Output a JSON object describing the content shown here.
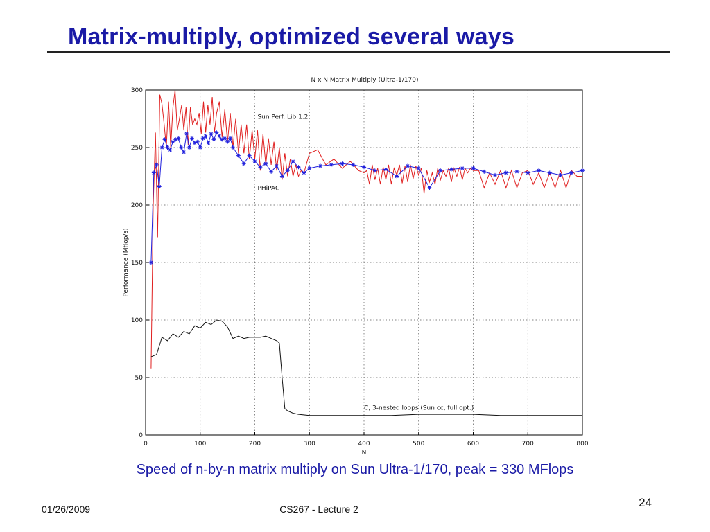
{
  "slide": {
    "title": "Matrix-multiply, optimized several ways",
    "caption": "Speed of n-by-n matrix multiply on Sun Ultra-1/170, peak = 330 MFlops",
    "footer_date": "01/26/2009",
    "footer_center": "CS267 - Lecture 2",
    "page_number": "24"
  },
  "chart_data": {
    "type": "line",
    "title": "N x N Matrix Multiply (Ultra-1/170)",
    "xlabel": "N",
    "ylabel": "Performance (Mflop/s)",
    "xlim": [
      0,
      800
    ],
    "ylim": [
      0,
      300
    ],
    "xticks": [
      0,
      100,
      200,
      300,
      400,
      500,
      600,
      700,
      800
    ],
    "yticks": [
      0,
      50,
      100,
      150,
      200,
      250,
      300
    ],
    "grid": true,
    "annotations": [
      {
        "text": "Sun Perf. Lib 1.2",
        "x": 205,
        "y": 275
      },
      {
        "text": "PHiPAC",
        "x": 205,
        "y": 213
      },
      {
        "text": "C, 3-nested loops (Sun cc, full opt.)",
        "x": 400,
        "y": 22
      }
    ],
    "series": [
      {
        "name": "",
        "color": "#e02020",
        "marker": "none",
        "x": [
          10,
          14,
          18,
          22,
          26,
          30,
          34,
          38,
          42,
          46,
          50,
          54,
          58,
          62,
          66,
          70,
          74,
          78,
          82,
          86,
          90,
          94,
          98,
          102,
          106,
          110,
          114,
          118,
          122,
          126,
          130,
          135,
          140,
          145,
          150,
          155,
          160,
          165,
          170,
          175,
          180,
          185,
          190,
          195,
          200,
          205,
          210,
          215,
          220,
          225,
          230,
          235,
          240,
          245,
          250,
          255,
          260,
          265,
          270,
          275,
          280,
          285,
          290,
          300,
          315,
          330,
          345,
          360,
          375,
          390,
          400,
          405,
          410,
          415,
          420,
          425,
          430,
          435,
          440,
          445,
          450,
          455,
          460,
          465,
          470,
          475,
          480,
          485,
          490,
          495,
          500,
          505,
          510,
          515,
          520,
          525,
          530,
          535,
          540,
          545,
          550,
          555,
          560,
          565,
          570,
          575,
          580,
          585,
          590,
          595,
          600,
          610,
          620,
          630,
          640,
          650,
          660,
          670,
          680,
          690,
          700,
          710,
          720,
          730,
          740,
          750,
          760,
          770,
          780,
          790,
          800
        ],
        "y": [
          58,
          200,
          263,
          172,
          296,
          288,
          270,
          250,
          290,
          250,
          285,
          300,
          265,
          275,
          287,
          265,
          285,
          252,
          285,
          270,
          275,
          270,
          280,
          262,
          290,
          263,
          287,
          270,
          294,
          263,
          280,
          290,
          259,
          283,
          255,
          280,
          250,
          275,
          245,
          270,
          245,
          270,
          240,
          265,
          240,
          265,
          230,
          262,
          235,
          258,
          235,
          255,
          230,
          250,
          222,
          245,
          225,
          240,
          225,
          235,
          225,
          230,
          228,
          245,
          248,
          235,
          240,
          232,
          238,
          230,
          228,
          230,
          218,
          235,
          222,
          232,
          218,
          233,
          222,
          235,
          218,
          232,
          226,
          235,
          219,
          234,
          220,
          235,
          223,
          234,
          226,
          232,
          210,
          230,
          220,
          228,
          218,
          232,
          222,
          230,
          225,
          232,
          220,
          232,
          225,
          233,
          222,
          232,
          228,
          232,
          230,
          230,
          215,
          228,
          218,
          230,
          215,
          230,
          215,
          228,
          230,
          218,
          228,
          215,
          228,
          215,
          230,
          215,
          230,
          225,
          225
        ]
      },
      {
        "name": "",
        "color": "#2020dd",
        "marker": "star",
        "x": [
          10,
          15,
          20,
          25,
          30,
          35,
          40,
          45,
          50,
          55,
          60,
          65,
          70,
          75,
          80,
          85,
          90,
          95,
          100,
          105,
          110,
          115,
          120,
          125,
          130,
          135,
          140,
          145,
          150,
          155,
          160,
          170,
          180,
          190,
          200,
          210,
          220,
          230,
          240,
          250,
          260,
          270,
          280,
          290,
          300,
          320,
          340,
          360,
          380,
          400,
          420,
          440,
          460,
          480,
          500,
          520,
          540,
          560,
          580,
          600,
          620,
          640,
          660,
          680,
          700,
          720,
          740,
          760,
          780,
          800
        ],
        "y": [
          150,
          228,
          235,
          216,
          250,
          257,
          250,
          248,
          255,
          257,
          258,
          250,
          246,
          262,
          250,
          258,
          254,
          255,
          250,
          258,
          260,
          254,
          262,
          257,
          263,
          260,
          257,
          258,
          255,
          258,
          250,
          243,
          236,
          243,
          238,
          233,
          236,
          229,
          234,
          225,
          230,
          238,
          233,
          228,
          232,
          234,
          235,
          236,
          235,
          233,
          230,
          231,
          225,
          234,
          232,
          215,
          230,
          231,
          232,
          232,
          229,
          226,
          228,
          229,
          228,
          230,
          228,
          226,
          228,
          230
        ]
      },
      {
        "name": "",
        "color": "#111111",
        "marker": "none",
        "x": [
          10,
          20,
          30,
          40,
          50,
          60,
          70,
          80,
          90,
          100,
          110,
          120,
          130,
          140,
          150,
          160,
          170,
          180,
          190,
          200,
          210,
          220,
          230,
          240,
          245,
          250,
          255,
          260,
          270,
          280,
          300,
          350,
          400,
          450,
          500,
          550,
          600,
          650,
          700,
          750,
          800
        ],
        "y": [
          68,
          70,
          85,
          82,
          88,
          85,
          90,
          88,
          95,
          93,
          98,
          96,
          100,
          99,
          94,
          84,
          86,
          84,
          85,
          85,
          85,
          86,
          84,
          82,
          80,
          50,
          23,
          21,
          19,
          18,
          17,
          17,
          17,
          17,
          18,
          18,
          18,
          17,
          17,
          17,
          17
        ]
      }
    ]
  }
}
